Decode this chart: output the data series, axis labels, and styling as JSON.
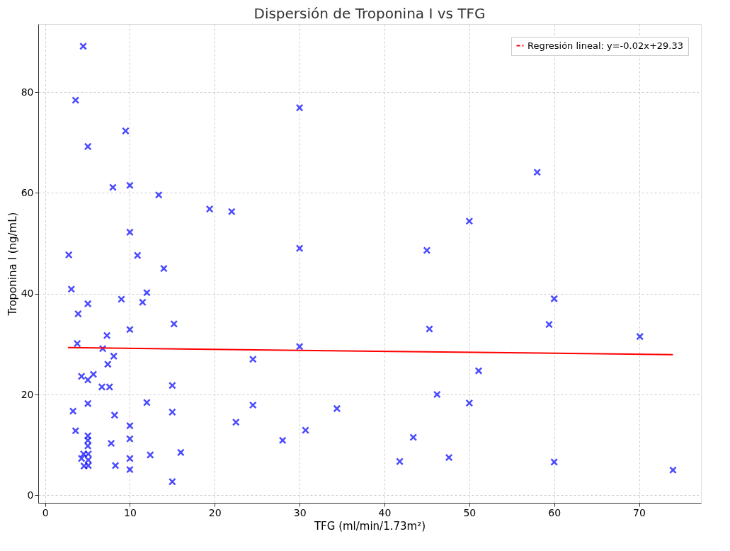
{
  "chart_data": {
    "type": "scatter",
    "title": "Dispersión de Troponina I vs TFG",
    "xlabel": "TFG (ml/min/1.73m²)",
    "ylabel": "Troponina I (ng/mL)",
    "xlim": [
      -0.8,
      77.3
    ],
    "xticks": [
      0,
      10,
      20,
      30,
      40,
      50,
      60,
      70
    ],
    "ylim": [
      -1.5,
      93.5
    ],
    "yticks": [
      0,
      20,
      40,
      60,
      80
    ],
    "grid": true,
    "legend": "top right",
    "series": [
      {
        "color": "#0000ff",
        "marker": "cross",
        "x": [
          4.5,
          3.6,
          9.5,
          5.05,
          8.0,
          10.0,
          13.4,
          19.4,
          22.0,
          10.0,
          2.8,
          10.9,
          14.0,
          3.1,
          12.0,
          5.05,
          9.0,
          11.5,
          3.9,
          15.2,
          10.0,
          7.3,
          3.8,
          6.8,
          8.1,
          7.4,
          4.3,
          5.05,
          5.7,
          6.7,
          7.6,
          15.0,
          5.05,
          12.0,
          3.3,
          8.2,
          15.0,
          10.0,
          3.6,
          10.0,
          5.05,
          5.05,
          5.05,
          7.8,
          4.55,
          5.1,
          4.3,
          5.1,
          4.6,
          5.1,
          10.0,
          10.0,
          8.3,
          12.4,
          16.0,
          15.0,
          22.5,
          24.5,
          24.5,
          30.0,
          58.0,
          50.0,
          30.0,
          45.0,
          60.0,
          45.3,
          59.4,
          70.1,
          30.0,
          51.1,
          46.2,
          50.0,
          34.4,
          30.7,
          28.0,
          43.4,
          41.8,
          47.6,
          60.0,
          74.0
        ],
        "values": [
          89.1,
          78.4,
          72.3,
          69.2,
          61.1,
          61.5,
          59.6,
          56.8,
          56.3,
          52.2,
          47.7,
          47.6,
          45.0,
          40.9,
          40.2,
          38.0,
          38.9,
          38.3,
          36.0,
          34.0,
          32.9,
          31.7,
          30.1,
          29.1,
          27.6,
          26.0,
          23.6,
          22.9,
          24.0,
          21.5,
          21.5,
          21.8,
          18.2,
          18.4,
          16.7,
          15.9,
          16.5,
          13.8,
          12.8,
          11.2,
          11.8,
          10.9,
          9.8,
          10.3,
          8.2,
          8.2,
          7.3,
          7.0,
          5.8,
          5.9,
          7.3,
          5.1,
          5.9,
          8.0,
          8.5,
          2.7,
          14.5,
          27.0,
          17.9,
          76.9,
          64.1,
          54.4,
          49.0,
          48.6,
          39.0,
          33.0,
          33.9,
          31.5,
          29.5,
          24.7,
          20.0,
          18.3,
          17.2,
          12.9,
          10.9,
          11.5,
          6.7,
          7.5,
          6.6,
          5.0
        ]
      },
      {
        "type": "line",
        "name": "Regresión lineal: y=-0.02x+29.33",
        "color": "#ff0000",
        "line_style": "solid",
        "marker": "none",
        "x": [
          2.7,
          74.0
        ],
        "values": [
          29.3,
          27.9
        ]
      }
    ]
  }
}
